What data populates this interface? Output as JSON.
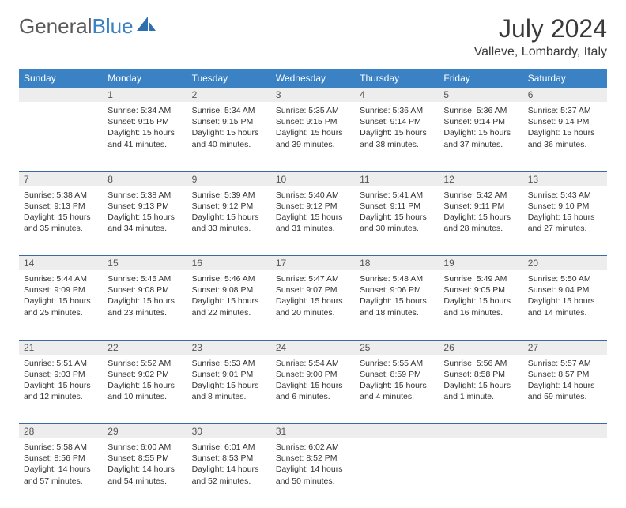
{
  "logo": {
    "word1": "General",
    "word2": "Blue"
  },
  "title": "July 2024",
  "location": "Valleve, Lombardy, Italy",
  "colors": {
    "header_bg": "#3b82c4",
    "header_fg": "#ffffff",
    "daynum_bg": "#ededed",
    "row_divider": "#3b6aa0",
    "text": "#333333",
    "logo_gray": "#5a5a5a",
    "logo_blue": "#3b82c4"
  },
  "weekdays": [
    "Sunday",
    "Monday",
    "Tuesday",
    "Wednesday",
    "Thursday",
    "Friday",
    "Saturday"
  ],
  "weeks": [
    {
      "nums": [
        "",
        "1",
        "2",
        "3",
        "4",
        "5",
        "6"
      ],
      "cells": [
        null,
        {
          "sunrise": "Sunrise: 5:34 AM",
          "sunset": "Sunset: 9:15 PM",
          "day1": "Daylight: 15 hours",
          "day2": "and 41 minutes."
        },
        {
          "sunrise": "Sunrise: 5:34 AM",
          "sunset": "Sunset: 9:15 PM",
          "day1": "Daylight: 15 hours",
          "day2": "and 40 minutes."
        },
        {
          "sunrise": "Sunrise: 5:35 AM",
          "sunset": "Sunset: 9:15 PM",
          "day1": "Daylight: 15 hours",
          "day2": "and 39 minutes."
        },
        {
          "sunrise": "Sunrise: 5:36 AM",
          "sunset": "Sunset: 9:14 PM",
          "day1": "Daylight: 15 hours",
          "day2": "and 38 minutes."
        },
        {
          "sunrise": "Sunrise: 5:36 AM",
          "sunset": "Sunset: 9:14 PM",
          "day1": "Daylight: 15 hours",
          "day2": "and 37 minutes."
        },
        {
          "sunrise": "Sunrise: 5:37 AM",
          "sunset": "Sunset: 9:14 PM",
          "day1": "Daylight: 15 hours",
          "day2": "and 36 minutes."
        }
      ]
    },
    {
      "nums": [
        "7",
        "8",
        "9",
        "10",
        "11",
        "12",
        "13"
      ],
      "cells": [
        {
          "sunrise": "Sunrise: 5:38 AM",
          "sunset": "Sunset: 9:13 PM",
          "day1": "Daylight: 15 hours",
          "day2": "and 35 minutes."
        },
        {
          "sunrise": "Sunrise: 5:38 AM",
          "sunset": "Sunset: 9:13 PM",
          "day1": "Daylight: 15 hours",
          "day2": "and 34 minutes."
        },
        {
          "sunrise": "Sunrise: 5:39 AM",
          "sunset": "Sunset: 9:12 PM",
          "day1": "Daylight: 15 hours",
          "day2": "and 33 minutes."
        },
        {
          "sunrise": "Sunrise: 5:40 AM",
          "sunset": "Sunset: 9:12 PM",
          "day1": "Daylight: 15 hours",
          "day2": "and 31 minutes."
        },
        {
          "sunrise": "Sunrise: 5:41 AM",
          "sunset": "Sunset: 9:11 PM",
          "day1": "Daylight: 15 hours",
          "day2": "and 30 minutes."
        },
        {
          "sunrise": "Sunrise: 5:42 AM",
          "sunset": "Sunset: 9:11 PM",
          "day1": "Daylight: 15 hours",
          "day2": "and 28 minutes."
        },
        {
          "sunrise": "Sunrise: 5:43 AM",
          "sunset": "Sunset: 9:10 PM",
          "day1": "Daylight: 15 hours",
          "day2": "and 27 minutes."
        }
      ]
    },
    {
      "nums": [
        "14",
        "15",
        "16",
        "17",
        "18",
        "19",
        "20"
      ],
      "cells": [
        {
          "sunrise": "Sunrise: 5:44 AM",
          "sunset": "Sunset: 9:09 PM",
          "day1": "Daylight: 15 hours",
          "day2": "and 25 minutes."
        },
        {
          "sunrise": "Sunrise: 5:45 AM",
          "sunset": "Sunset: 9:08 PM",
          "day1": "Daylight: 15 hours",
          "day2": "and 23 minutes."
        },
        {
          "sunrise": "Sunrise: 5:46 AM",
          "sunset": "Sunset: 9:08 PM",
          "day1": "Daylight: 15 hours",
          "day2": "and 22 minutes."
        },
        {
          "sunrise": "Sunrise: 5:47 AM",
          "sunset": "Sunset: 9:07 PM",
          "day1": "Daylight: 15 hours",
          "day2": "and 20 minutes."
        },
        {
          "sunrise": "Sunrise: 5:48 AM",
          "sunset": "Sunset: 9:06 PM",
          "day1": "Daylight: 15 hours",
          "day2": "and 18 minutes."
        },
        {
          "sunrise": "Sunrise: 5:49 AM",
          "sunset": "Sunset: 9:05 PM",
          "day1": "Daylight: 15 hours",
          "day2": "and 16 minutes."
        },
        {
          "sunrise": "Sunrise: 5:50 AM",
          "sunset": "Sunset: 9:04 PM",
          "day1": "Daylight: 15 hours",
          "day2": "and 14 minutes."
        }
      ]
    },
    {
      "nums": [
        "21",
        "22",
        "23",
        "24",
        "25",
        "26",
        "27"
      ],
      "cells": [
        {
          "sunrise": "Sunrise: 5:51 AM",
          "sunset": "Sunset: 9:03 PM",
          "day1": "Daylight: 15 hours",
          "day2": "and 12 minutes."
        },
        {
          "sunrise": "Sunrise: 5:52 AM",
          "sunset": "Sunset: 9:02 PM",
          "day1": "Daylight: 15 hours",
          "day2": "and 10 minutes."
        },
        {
          "sunrise": "Sunrise: 5:53 AM",
          "sunset": "Sunset: 9:01 PM",
          "day1": "Daylight: 15 hours",
          "day2": "and 8 minutes."
        },
        {
          "sunrise": "Sunrise: 5:54 AM",
          "sunset": "Sunset: 9:00 PM",
          "day1": "Daylight: 15 hours",
          "day2": "and 6 minutes."
        },
        {
          "sunrise": "Sunrise: 5:55 AM",
          "sunset": "Sunset: 8:59 PM",
          "day1": "Daylight: 15 hours",
          "day2": "and 4 minutes."
        },
        {
          "sunrise": "Sunrise: 5:56 AM",
          "sunset": "Sunset: 8:58 PM",
          "day1": "Daylight: 15 hours",
          "day2": "and 1 minute."
        },
        {
          "sunrise": "Sunrise: 5:57 AM",
          "sunset": "Sunset: 8:57 PM",
          "day1": "Daylight: 14 hours",
          "day2": "and 59 minutes."
        }
      ]
    },
    {
      "nums": [
        "28",
        "29",
        "30",
        "31",
        "",
        "",
        ""
      ],
      "cells": [
        {
          "sunrise": "Sunrise: 5:58 AM",
          "sunset": "Sunset: 8:56 PM",
          "day1": "Daylight: 14 hours",
          "day2": "and 57 minutes."
        },
        {
          "sunrise": "Sunrise: 6:00 AM",
          "sunset": "Sunset: 8:55 PM",
          "day1": "Daylight: 14 hours",
          "day2": "and 54 minutes."
        },
        {
          "sunrise": "Sunrise: 6:01 AM",
          "sunset": "Sunset: 8:53 PM",
          "day1": "Daylight: 14 hours",
          "day2": "and 52 minutes."
        },
        {
          "sunrise": "Sunrise: 6:02 AM",
          "sunset": "Sunset: 8:52 PM",
          "day1": "Daylight: 14 hours",
          "day2": "and 50 minutes."
        },
        null,
        null,
        null
      ]
    }
  ]
}
